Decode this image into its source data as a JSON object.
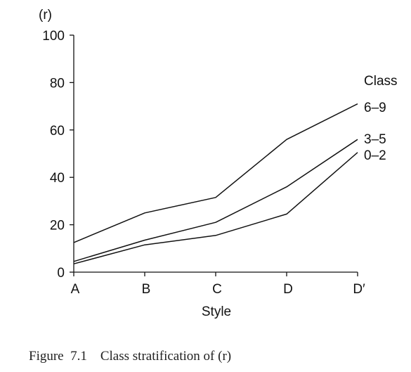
{
  "chart_data": {
    "type": "line",
    "categories": [
      "A",
      "B",
      "C",
      "D",
      "D′"
    ],
    "ylabel": "(r)",
    "xlabel": "Style",
    "ylim": [
      0,
      100
    ],
    "yticks": [
      "0",
      "20",
      "40",
      "60",
      "80",
      "100"
    ],
    "legend_title": "Class",
    "series": [
      {
        "name": "6–9",
        "values": [
          12.5,
          25,
          31.5,
          56,
          71
        ]
      },
      {
        "name": "3–5",
        "values": [
          4.5,
          13.5,
          21,
          36,
          56
        ]
      },
      {
        "name": "0–2",
        "values": [
          3.5,
          11.5,
          15.5,
          24.5,
          50.5
        ]
      }
    ],
    "grid": false,
    "line_color": "#111111"
  },
  "caption": {
    "number": "Figure  7.1",
    "text": "Class stratification of (r)"
  }
}
